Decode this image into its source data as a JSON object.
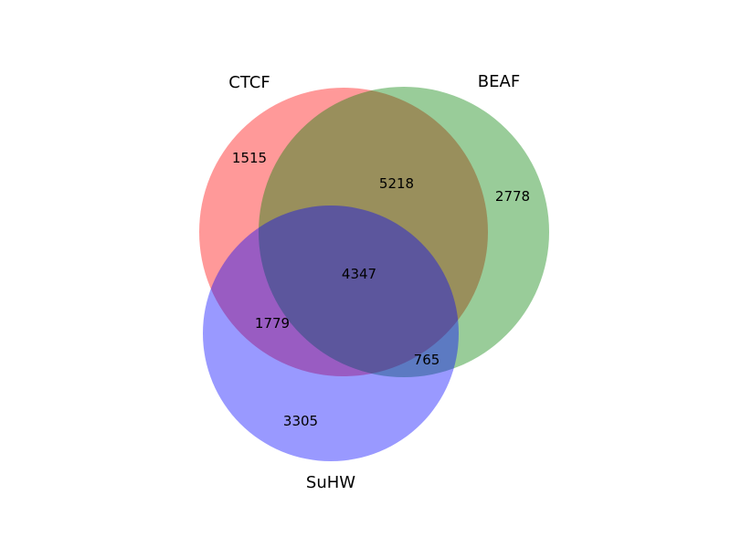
{
  "sets": [
    {
      "key": "ctcf",
      "name": "CTCF",
      "color": "#ff0000"
    },
    {
      "key": "beaf",
      "name": "BEAF",
      "color": "#008000"
    },
    {
      "key": "suhw",
      "name": "SuHW",
      "color": "#0000ff"
    }
  ],
  "regions": {
    "ctcf_only": "1515",
    "beaf_only": "2778",
    "suhw_only": "3305",
    "ctcf_beaf": "5218",
    "ctcf_suhw": "1779",
    "beaf_suhw": "765",
    "all_three": "4347"
  },
  "fill_opacity": 0.4
}
